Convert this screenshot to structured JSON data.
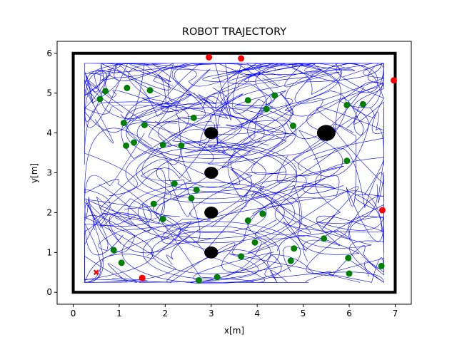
{
  "chart_data": {
    "type": "scatter",
    "title": "ROBOT TRAJECTORY",
    "xlabel": "x[m]",
    "ylabel": "y[m]",
    "xlim": [
      -0.35,
      7.35
    ],
    "ylim": [
      -0.3,
      6.3
    ],
    "xticks": [
      "0",
      "1",
      "2",
      "3",
      "4",
      "5",
      "6",
      "7"
    ],
    "yticks": [
      "0",
      "1",
      "2",
      "3",
      "4",
      "5",
      "6"
    ],
    "grid": false,
    "arena": {
      "x": [
        0,
        7
      ],
      "y": [
        0,
        6
      ],
      "color": "#000000"
    },
    "trajectory_color": "#0000ff",
    "obstacles": {
      "color": "#000000",
      "points": [
        {
          "x": 3.0,
          "y": 4.0,
          "r": 0.15
        },
        {
          "x": 3.0,
          "y": 3.0,
          "r": 0.15
        },
        {
          "x": 3.0,
          "y": 2.0,
          "r": 0.15
        },
        {
          "x": 3.0,
          "y": 1.0,
          "r": 0.15
        },
        {
          "x": 5.5,
          "y": 4.0,
          "r": 0.2
        }
      ]
    },
    "series": [
      {
        "marker": "circle",
        "color": "#008000",
        "points": [
          [
            0.7,
            5.05
          ],
          [
            0.58,
            4.85
          ],
          [
            1.17,
            5.13
          ],
          [
            1.67,
            5.07
          ],
          [
            1.1,
            4.25
          ],
          [
            1.55,
            4.2
          ],
          [
            1.15,
            3.68
          ],
          [
            1.32,
            3.76
          ],
          [
            1.95,
            3.7
          ],
          [
            2.35,
            3.68
          ],
          [
            2.62,
            4.38
          ],
          [
            3.8,
            4.82
          ],
          [
            4.2,
            4.6
          ],
          [
            4.38,
            4.94
          ],
          [
            4.78,
            4.18
          ],
          [
            5.95,
            4.7
          ],
          [
            6.3,
            4.72
          ],
          [
            5.95,
            3.3
          ],
          [
            2.2,
            2.73
          ],
          [
            2.68,
            2.57
          ],
          [
            2.57,
            2.36
          ],
          [
            1.75,
            2.22
          ],
          [
            1.95,
            1.84
          ],
          [
            3.8,
            1.8
          ],
          [
            4.12,
            1.97
          ],
          [
            3.95,
            1.25
          ],
          [
            3.65,
            0.9
          ],
          [
            4.8,
            1.1
          ],
          [
            4.73,
            0.79
          ],
          [
            5.45,
            1.35
          ],
          [
            5.98,
            0.86
          ],
          [
            6.0,
            0.47
          ],
          [
            6.7,
            0.66
          ],
          [
            0.88,
            1.06
          ],
          [
            1.05,
            0.74
          ],
          [
            2.73,
            0.3
          ],
          [
            3.13,
            0.38
          ]
        ]
      },
      {
        "marker": "circle",
        "color": "#ff0000",
        "points": [
          [
            2.95,
            5.9
          ],
          [
            3.65,
            5.87
          ],
          [
            6.97,
            5.32
          ],
          [
            6.72,
            2.06
          ],
          [
            1.5,
            0.36
          ]
        ]
      },
      {
        "marker": "x",
        "color": "#ff0000",
        "points": [
          [
            0.5,
            0.5
          ]
        ]
      }
    ]
  }
}
